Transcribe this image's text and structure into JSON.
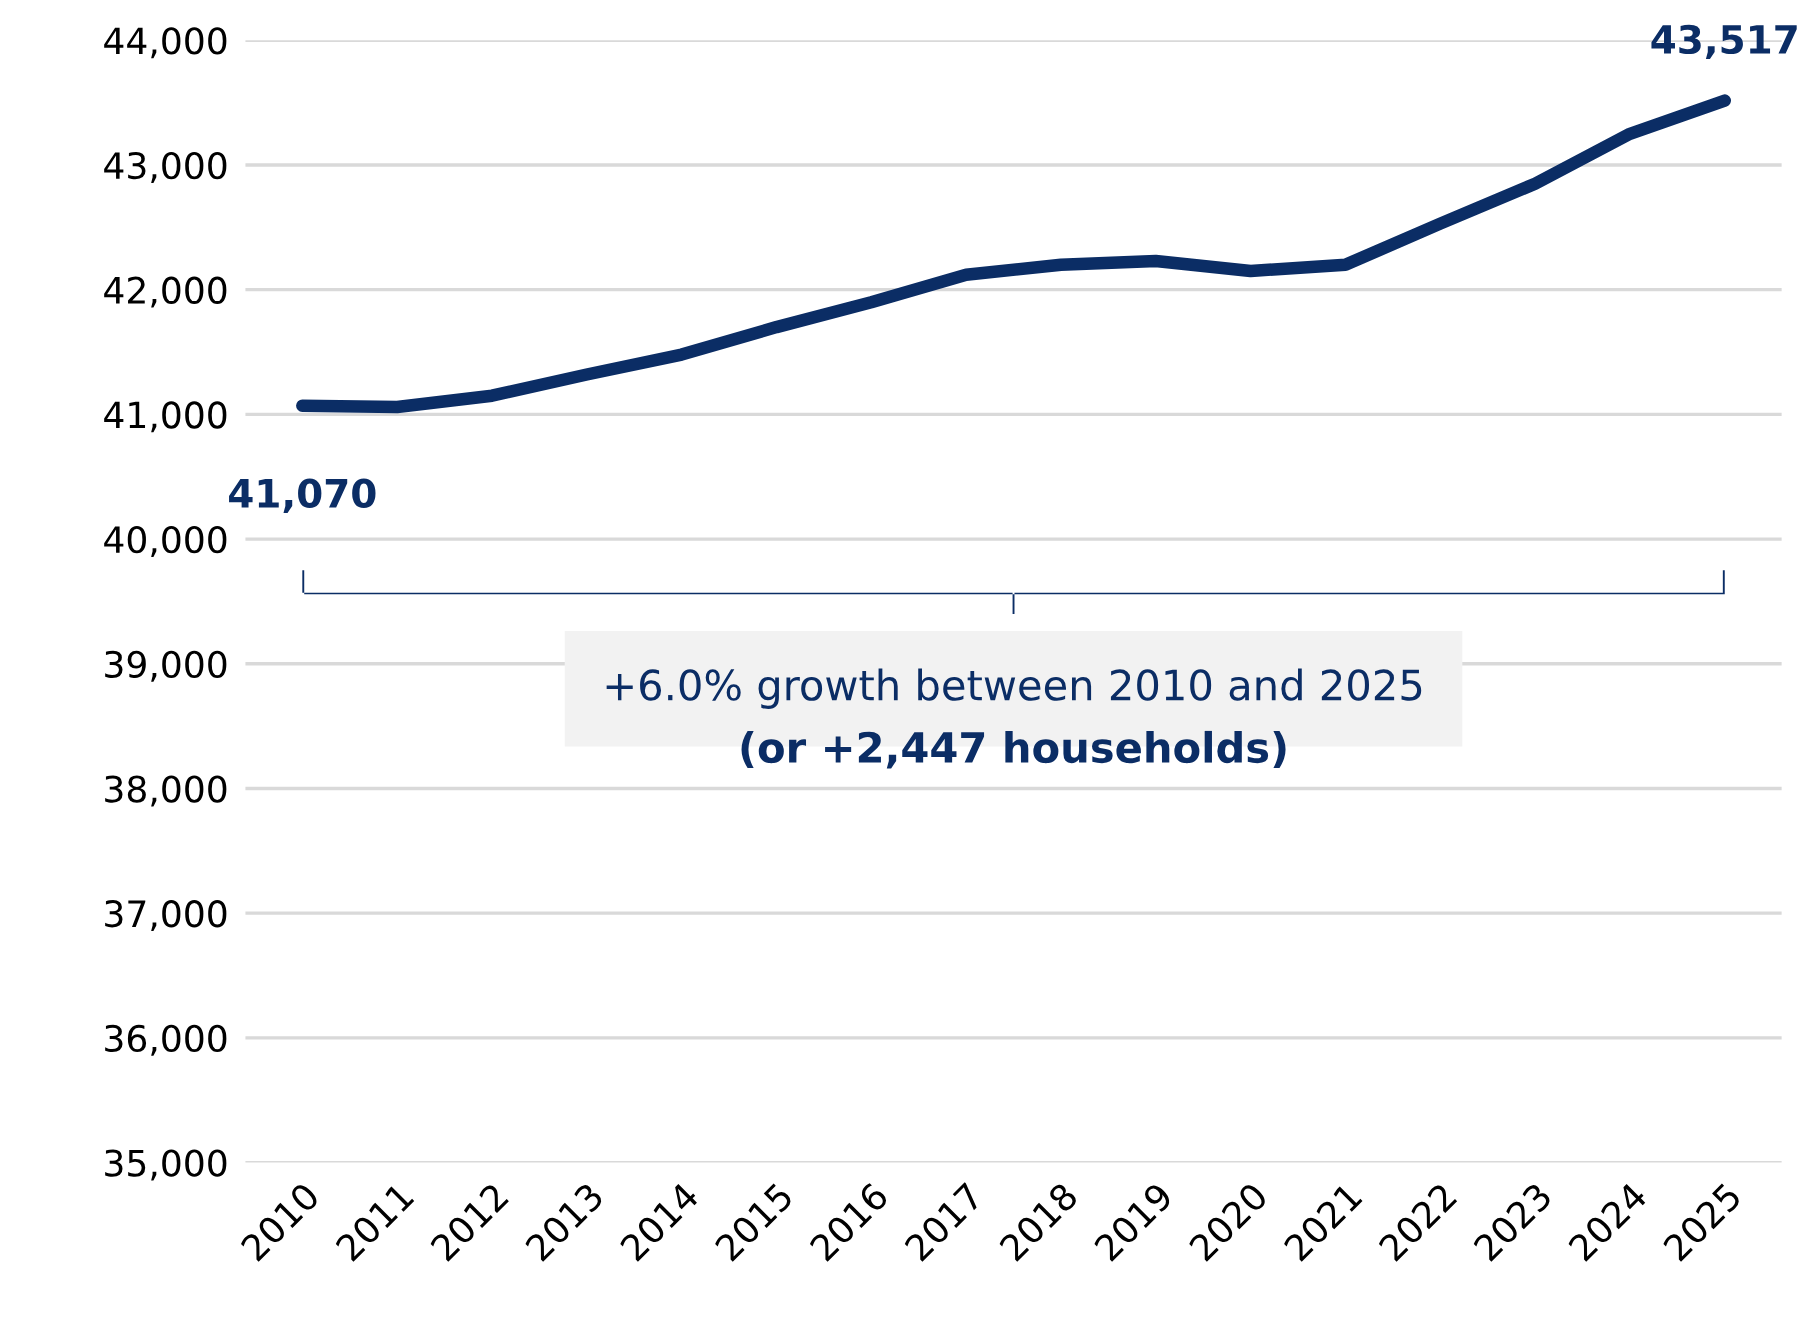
{
  "chart_data": {
    "type": "line",
    "categories": [
      "2010",
      "2011",
      "2012",
      "2013",
      "2014",
      "2015",
      "2016",
      "2017",
      "2018",
      "2019",
      "2020",
      "2021",
      "2022",
      "2023",
      "2024",
      "2025"
    ],
    "series": [
      {
        "color": "#0b2d65",
        "values": [
          41070,
          41060,
          41150,
          41320,
          41480,
          41700,
          41900,
          42120,
          42200,
          42230,
          42150,
          42200,
          42530,
          42850,
          43250,
          43517
        ],
        "value_labels": [
          "41,070",
          null,
          null,
          null,
          null,
          null,
          null,
          null,
          null,
          null,
          null,
          null,
          null,
          null,
          null,
          "43,517"
        ]
      }
    ],
    "ylim": [
      35000,
      44000
    ],
    "yticks": [
      {
        "value": 35000,
        "label": "35,000"
      },
      {
        "value": 36000,
        "label": "36,000"
      },
      {
        "value": 37000,
        "label": "37,000"
      },
      {
        "value": 38000,
        "label": "38,000"
      },
      {
        "value": 39000,
        "label": "39,000"
      },
      {
        "value": 40000,
        "label": "40,000"
      },
      {
        "value": 41000,
        "label": "41,000"
      },
      {
        "value": 42000,
        "label": "42,000"
      },
      {
        "value": 43000,
        "label": "43,000"
      },
      {
        "value": 44000,
        "label": "44,000"
      }
    ],
    "grid": "y",
    "marker": "none",
    "line_style": "solid",
    "annotations": [
      "+6.0% growth between 2010 and 2025",
      "(or +2,447 households)"
    ]
  }
}
